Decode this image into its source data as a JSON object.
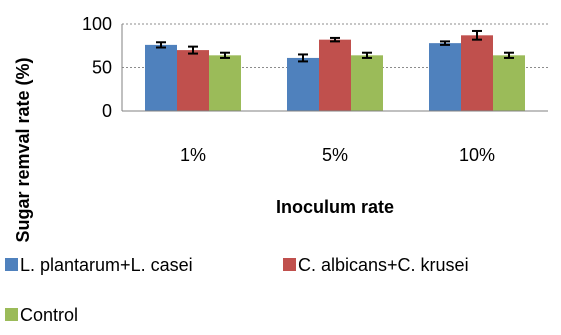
{
  "chart_data": {
    "type": "bar",
    "title": "",
    "xlabel": "Inoculum rate",
    "ylabel": "Sugar remval rate (%)",
    "categories": [
      "1%",
      "5%",
      "10%"
    ],
    "ylim": [
      0,
      100
    ],
    "yticks": [
      0,
      50,
      100
    ],
    "grid": "horizontal dotted",
    "legend_position": "bottom",
    "series": [
      {
        "name": "L. plantarum+L. casei",
        "color": "#4F81BD",
        "values": [
          76,
          61,
          78
        ],
        "errors": [
          3,
          4,
          2
        ]
      },
      {
        "name": "C. albicans+C. krusei",
        "color": "#C0504D",
        "values": [
          70,
          82,
          87
        ],
        "errors": [
          4,
          2,
          5
        ]
      },
      {
        "name": "Control",
        "color": "#9BBB59",
        "values": [
          64,
          64,
          64
        ],
        "errors": [
          3,
          3,
          3
        ]
      }
    ]
  }
}
